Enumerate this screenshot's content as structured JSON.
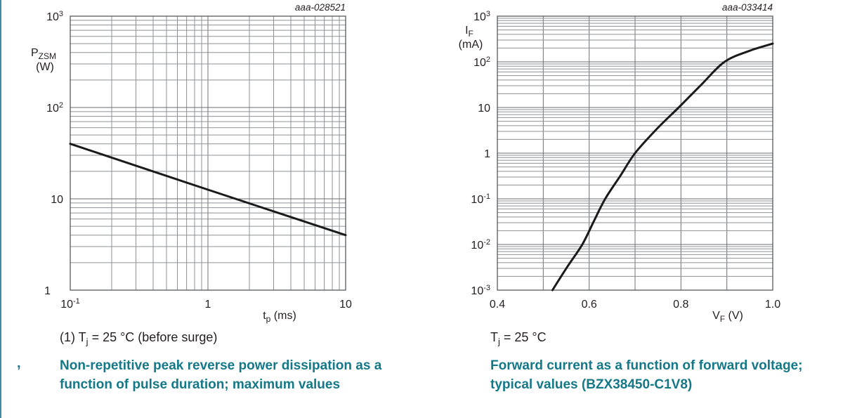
{
  "page": {
    "background": "#ffffff",
    "divider_color": "#3e8c9e",
    "accent_text_color": "#147888",
    "grid_minor_color": "#8f9194",
    "grid_major_color": "#6d6e71",
    "border_color": "#58595b",
    "curve_color": "#1a1a1a",
    "text_color": "#231f20",
    "list_marker": ","
  },
  "figures": [
    {
      "code": "aaa-028521",
      "note": {
        "pre": "(1) T",
        "sub": "j",
        "post": " = 25 °C (before surge)"
      },
      "caption": "Non-repetitive peak reverse power dissipation as a function of pulse duration; maximum values"
    },
    {
      "code": "aaa-033414",
      "note": {
        "pre": "T",
        "sub": "j",
        "post": " = 25 °C"
      },
      "caption": "Forward current as a function of forward voltage; typical values (BZX38450-C1V8)"
    }
  ],
  "chart_data": [
    {
      "type": "line",
      "title": "Non-repetitive peak reverse power dissipation as a function of pulse duration; maximum values",
      "figure_code": "aaa-028521",
      "grid": true,
      "legend": "none",
      "condition": "Tj = 25 °C (before surge)",
      "x_axis": {
        "scale": "log",
        "min": 0.1,
        "max": 10,
        "label": {
          "main": "t",
          "sub": "p",
          "unit": "(ms)"
        },
        "ticks": [
          {
            "value": 0.1,
            "label": "10^-1"
          },
          {
            "value": 1,
            "label": "1"
          },
          {
            "value": 10,
            "label": "10"
          }
        ]
      },
      "y_axis": {
        "scale": "log",
        "min": 1,
        "max": 1000,
        "label": {
          "main": "P",
          "sub": "ZSM",
          "unit": "(W)"
        },
        "ticks": [
          {
            "value": 1000,
            "label": "10^3"
          },
          {
            "value": 100,
            "label": "10^2"
          },
          {
            "value": 10,
            "label": "10"
          },
          {
            "value": 1,
            "label": "1"
          }
        ]
      },
      "series": [
        {
          "name": "PZSM maximum",
          "points": [
            [
              0.1,
              40
            ],
            [
              1,
              12.6
            ],
            [
              10,
              4
            ]
          ]
        }
      ]
    },
    {
      "type": "line",
      "title": "Forward current as a function of forward voltage; typical values (BZX38450-C1V8)",
      "figure_code": "aaa-033414",
      "grid": true,
      "legend": "none",
      "condition": "Tj = 25 °C",
      "x_axis": {
        "scale": "linear",
        "min": 0.4,
        "max": 1.0,
        "grid_step": 0.1,
        "label": {
          "main": "V",
          "sub": "F",
          "unit": "(V)"
        },
        "ticks": [
          {
            "value": 0.4,
            "label": "0.4"
          },
          {
            "value": 0.6,
            "label": "0.6"
          },
          {
            "value": 0.8,
            "label": "0.8"
          },
          {
            "value": 1.0,
            "label": "1.0"
          }
        ]
      },
      "y_axis": {
        "scale": "log",
        "min": 0.001,
        "max": 1000,
        "label": {
          "main": "I",
          "sub": "F",
          "unit": "(mA)"
        },
        "ticks": [
          {
            "value": 1000,
            "label": "10^3"
          },
          {
            "value": 100,
            "label": "10^2"
          },
          {
            "value": 10,
            "label": "10"
          },
          {
            "value": 1,
            "label": "1"
          },
          {
            "value": 0.1,
            "label": "10^-1"
          },
          {
            "value": 0.01,
            "label": "10^-2"
          },
          {
            "value": 0.001,
            "label": "10^-3"
          }
        ]
      },
      "series": [
        {
          "name": "IF typical",
          "points": [
            [
              0.52,
              0.001
            ],
            [
              0.552,
              0.0032
            ],
            [
              0.585,
              0.01
            ],
            [
              0.61,
              0.032
            ],
            [
              0.635,
              0.1
            ],
            [
              0.668,
              0.32
            ],
            [
              0.7,
              1
            ],
            [
              0.745,
              3.2
            ],
            [
              0.795,
              10
            ],
            [
              0.845,
              32
            ],
            [
              0.895,
              100
            ],
            [
              0.95,
              175
            ],
            [
              1.0,
              250
            ]
          ]
        }
      ]
    }
  ]
}
